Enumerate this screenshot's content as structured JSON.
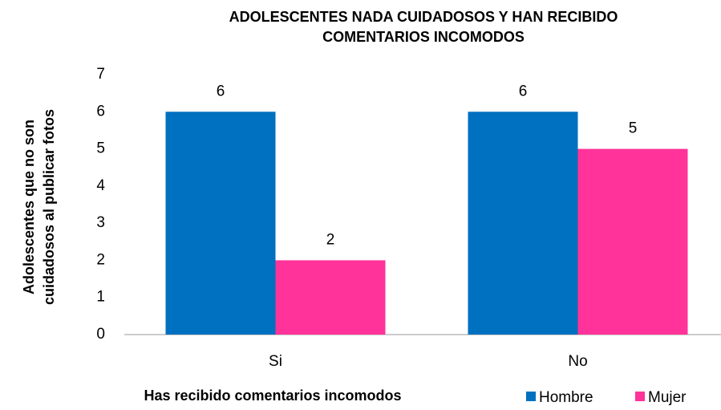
{
  "chart_data": {
    "type": "bar",
    "title": [
      "ADOLESCENTES NADA CUIDADOSOS Y HAN  RECIBIDO",
      "COMENTARIOS INCOMODOS"
    ],
    "y_label": [
      "Adolescentes que no son",
      "cuidadosos al publicar fotos"
    ],
    "x_label": "Has recibido comentarios incomodos",
    "categories": [
      "Si",
      "No"
    ],
    "series": [
      {
        "name": "Hombre",
        "color": "#0070c0",
        "values": [
          6,
          6
        ]
      },
      {
        "name": "Mujer",
        "color": "#ff3399",
        "values": [
          2,
          5
        ]
      }
    ],
    "ylim": [
      0,
      7
    ],
    "yticks": [
      0,
      1,
      2,
      3,
      4,
      5,
      6,
      7
    ],
    "grid": false,
    "legend": "bottom-right"
  }
}
